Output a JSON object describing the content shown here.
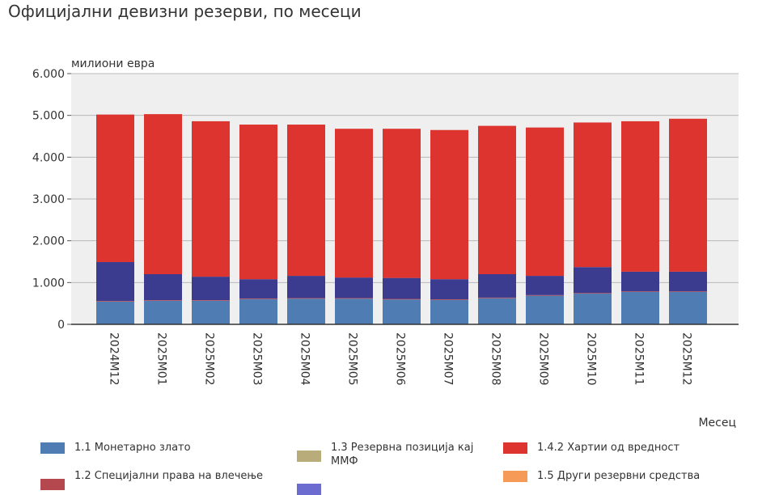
{
  "title": "Официјални девизни резерви, по месеци",
  "chart_data": {
    "type": "bar",
    "stacked": true,
    "title": "Официјални девизни резерви, по месеци",
    "ylabel": "милиони евра",
    "xlabel": "Месец",
    "ylim": [
      0,
      6000
    ],
    "yticks": [
      "0",
      "1.000",
      "2.000",
      "3.000",
      "4.000",
      "5.000",
      "6.000"
    ],
    "categories": [
      "2024M12",
      "2025M01",
      "2025M02",
      "2025M03",
      "2025M04",
      "2025M05",
      "2025M06",
      "2025M07",
      "2025M08",
      "2025M09",
      "2025M10",
      "2025M11",
      "2025M12"
    ],
    "series": [
      {
        "name": "1.1 Монетарно злато",
        "color": "#4f7db3",
        "values": [
          545,
          565,
          565,
          605,
          615,
          615,
          595,
          585,
          625,
          685,
          735,
          775,
          775
        ]
      },
      {
        "name": "1.2 Специјални права на влечење",
        "color": "#b5474e",
        "values": [
          15,
          15,
          15,
          15,
          15,
          15,
          15,
          15,
          15,
          15,
          15,
          15,
          15
        ]
      },
      {
        "name": "1.3 Резервна позиција кај ММФ",
        "color": "#b8ad7a",
        "values": [
          0,
          0,
          0,
          0,
          0,
          0,
          0,
          0,
          0,
          0,
          0,
          0,
          0
        ]
      },
      {
        "name": "",
        "color": "#3b3b8f",
        "values": [
          930,
          620,
          560,
          460,
          530,
          490,
          500,
          480,
          560,
          460,
          620,
          470,
          470
        ]
      },
      {
        "name": "1.4.2 Хартии од вредност",
        "color": "#dd3430",
        "values": [
          3530,
          3830,
          3720,
          3700,
          3620,
          3560,
          3570,
          3570,
          3550,
          3550,
          3460,
          3600,
          3660
        ]
      },
      {
        "name": "1.5 Други резервни средства",
        "color": "#f59a57",
        "values": [
          0,
          0,
          0,
          0,
          0,
          0,
          0,
          0,
          0,
          0,
          0,
          0,
          0
        ]
      }
    ],
    "grid": true,
    "legend": "bottom"
  }
}
